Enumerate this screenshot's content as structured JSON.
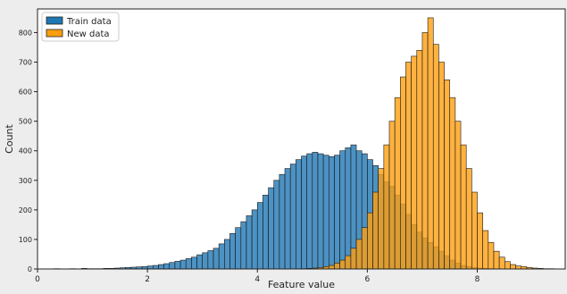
{
  "chart_data": {
    "type": "histogram",
    "title": "",
    "xlabel": "Feature value",
    "ylabel": "Count",
    "xlim": [
      0,
      9.6
    ],
    "ylim": [
      0,
      880
    ],
    "xticks": [
      0,
      2,
      4,
      6,
      8
    ],
    "xtick_labels": [
      "0",
      "2",
      "4",
      "6",
      "8"
    ],
    "yticks": [
      0,
      100,
      200,
      300,
      400,
      500,
      600,
      700,
      800
    ],
    "ytick_labels": [
      "0",
      "100",
      "200",
      "300",
      "400",
      "500",
      "600",
      "700",
      "800"
    ],
    "grid": false,
    "legend_position": "top-left",
    "series": [
      {
        "name": "Train data",
        "color": "#1f77b4",
        "bin_start": 0.3,
        "bin_width": 0.1,
        "counts": [
          1,
          0,
          0,
          1,
          0,
          2,
          1,
          1,
          1,
          2,
          2,
          3,
          4,
          5,
          6,
          7,
          8,
          10,
          12,
          15,
          18,
          22,
          26,
          30,
          35,
          40,
          48,
          55,
          62,
          70,
          85,
          100,
          120,
          140,
          160,
          180,
          200,
          225,
          250,
          275,
          300,
          320,
          340,
          355,
          370,
          382,
          390,
          395,
          390,
          385,
          380,
          385,
          400,
          410,
          420,
          400,
          390,
          370,
          350,
          320,
          295,
          280,
          250,
          220,
          185,
          150,
          125,
          105,
          90,
          75,
          60,
          45,
          30,
          20,
          12,
          8,
          5,
          3,
          2,
          1
        ]
      },
      {
        "name": "New data",
        "color": "#ff9f0f",
        "bin_start": 4.8,
        "bin_width": 0.1,
        "counts": [
          1,
          2,
          3,
          5,
          8,
          12,
          20,
          30,
          45,
          70,
          100,
          140,
          190,
          260,
          340,
          420,
          500,
          580,
          650,
          700,
          720,
          740,
          800,
          850,
          760,
          700,
          640,
          580,
          500,
          420,
          340,
          260,
          190,
          130,
          90,
          60,
          40,
          25,
          15,
          10,
          8,
          5,
          3,
          2,
          1,
          1,
          0,
          0
        ]
      }
    ]
  }
}
